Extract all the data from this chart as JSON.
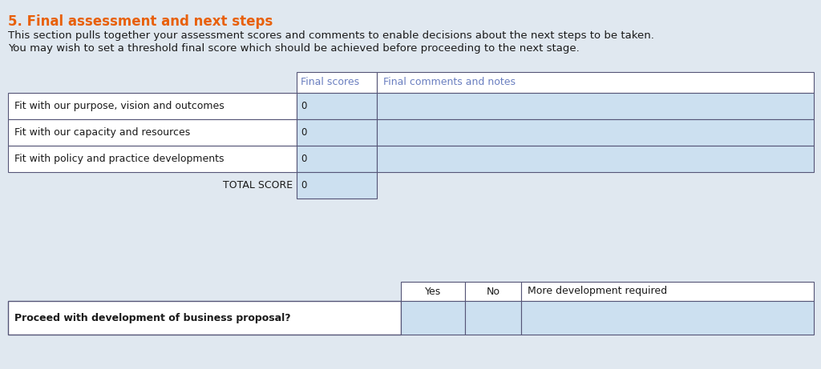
{
  "title": "5. Final assessment and next steps",
  "title_color": "#E8600A",
  "body_text_line1": "This section pulls together your assessment scores and comments to enable decisions about the next steps to be taken.",
  "body_text_line2": "You may wish to set a threshold final score which should be achieved before proceeding to the next stage.",
  "background_color": "#E0E8F0",
  "table1_header_col2": "Final scores",
  "table1_header_col3": "Final comments and notes",
  "table1_header_color": "#6A7FC0",
  "table1_cell_bg": "#CCE0F0",
  "table1_rows": [
    "Fit with our purpose, vision and outcomes",
    "Fit with our capacity and resources",
    "Fit with policy and practice developments"
  ],
  "table1_score_col_value": "0",
  "table1_total_label": "TOTAL SCORE",
  "table1_total_value": "0",
  "table2_header_col2": "Yes",
  "table2_header_col3": "No",
  "table2_header_col4": "More development required",
  "table2_row_label": "Proceed with development of business proposal?",
  "table_border_color": "#555577",
  "text_color_dark": "#1A1A1A",
  "font_size_title": 12,
  "font_size_body": 9.5,
  "font_size_table": 9
}
